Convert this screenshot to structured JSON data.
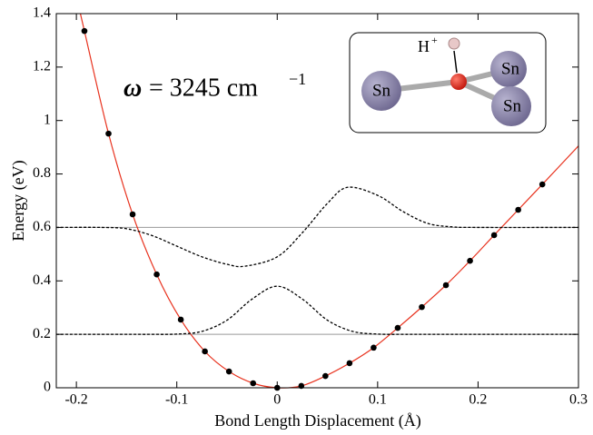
{
  "chart_data": {
    "type": "scatter",
    "xlabel": "Bond Length Displacement (Å)",
    "ylabel": "Energy (eV)",
    "xlim": [
      -0.22,
      0.3
    ],
    "ylim": [
      0,
      1.4
    ],
    "xticks": [
      -0.2,
      -0.1,
      0,
      0.1,
      0.2,
      0.3
    ],
    "yticks": [
      0,
      0.2,
      0.4,
      0.6,
      0.8,
      1,
      1.2,
      1.4
    ],
    "levels": [
      0.2,
      0.6
    ],
    "level_color": "#999999",
    "annotation": {
      "symbol": "ω",
      "text": "= 3245 cm",
      "superscript": "−1"
    },
    "inset": {
      "proton": "H",
      "charge": "+",
      "atoms": [
        "Sn",
        "Sn",
        "Sn"
      ]
    },
    "series": [
      {
        "type": "line",
        "style": "solid",
        "color": "#e8321e",
        "x": [
          -0.196,
          -0.192,
          -0.168,
          -0.144,
          -0.12,
          -0.096,
          -0.072,
          -0.048,
          -0.024,
          0,
          0.024,
          0.048,
          0.072,
          0.096,
          0.12,
          0.144,
          0.168,
          0.192,
          0.216,
          0.24,
          0.264,
          0.3
        ],
        "values": [
          1.4,
          1.335,
          0.951,
          0.649,
          0.424,
          0.255,
          0.136,
          0.061,
          0.017,
          0,
          0.007,
          0.044,
          0.092,
          0.15,
          0.224,
          0.302,
          0.384,
          0.475,
          0.571,
          0.666,
          0.761,
          0.905
        ]
      },
      {
        "type": "line",
        "style": "dashed",
        "color": "#000000",
        "x": [
          -0.22,
          -0.15,
          -0.125,
          -0.1,
          -0.075,
          -0.05,
          -0.025,
          0,
          0.025,
          0.05,
          0.075,
          0.1,
          0.125,
          0.15,
          0.3
        ],
        "values": [
          0.2,
          0.2,
          0.2,
          0.201,
          0.211,
          0.253,
          0.332,
          0.38,
          0.332,
          0.253,
          0.211,
          0.201,
          0.2,
          0.2,
          0.2
        ]
      },
      {
        "type": "line",
        "style": "dashed",
        "color": "#000000",
        "x": [
          -0.22,
          -0.175,
          -0.15,
          -0.125,
          -0.1,
          -0.075,
          -0.05,
          -0.032,
          0,
          0.025,
          0.05,
          0.07,
          0.1,
          0.125,
          0.15,
          0.175,
          0.2,
          0.3
        ],
        "values": [
          0.6,
          0.6,
          0.595,
          0.57,
          0.53,
          0.49,
          0.462,
          0.455,
          0.49,
          0.58,
          0.69,
          0.75,
          0.72,
          0.66,
          0.615,
          0.602,
          0.6,
          0.6
        ]
      },
      {
        "type": "scatter",
        "color": "#000000",
        "x": [
          -0.192,
          -0.168,
          -0.144,
          -0.12,
          -0.096,
          -0.072,
          -0.048,
          -0.024,
          0,
          0.024,
          0.048,
          0.072,
          0.096,
          0.12,
          0.144,
          0.168,
          0.192,
          0.216,
          0.24,
          0.264
        ],
        "values": [
          1.335,
          0.951,
          0.649,
          0.424,
          0.255,
          0.136,
          0.061,
          0.017,
          0,
          0.007,
          0.044,
          0.092,
          0.15,
          0.224,
          0.302,
          0.384,
          0.475,
          0.571,
          0.666,
          0.761
        ]
      }
    ]
  }
}
